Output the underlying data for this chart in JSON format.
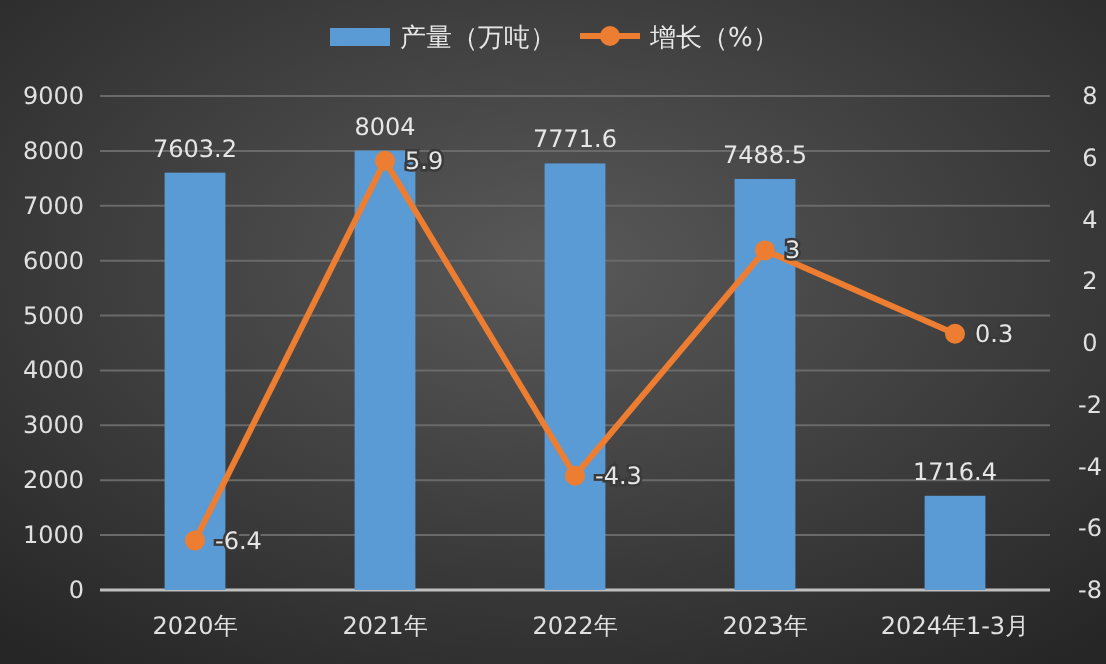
{
  "chart_data": {
    "type": "bar",
    "categories": [
      "2020年",
      "2021年",
      "2022年",
      "2023年",
      "2024年1-3月"
    ],
    "series": [
      {
        "name": "产量（万吨）",
        "color": "#5b9bd5",
        "values": [
          7603.2,
          8004,
          7771.6,
          7488.5,
          1716.4
        ]
      },
      {
        "name": "增长（%）",
        "type": "line",
        "axis": "y2",
        "color": "#ed7d31",
        "values": [
          -6.4,
          5.9,
          -4.3,
          3,
          0.3
        ]
      }
    ],
    "ylim": [
      0,
      9000
    ],
    "yticks": [
      0,
      1000,
      2000,
      3000,
      4000,
      5000,
      6000,
      7000,
      8000,
      9000
    ],
    "y2lim": [
      -8,
      8
    ],
    "y2ticks": [
      -8,
      -6,
      -4,
      -2,
      0,
      2,
      4,
      6,
      8
    ],
    "grid": "y",
    "legend": "top",
    "marker": "circle",
    "data_labels": true
  }
}
